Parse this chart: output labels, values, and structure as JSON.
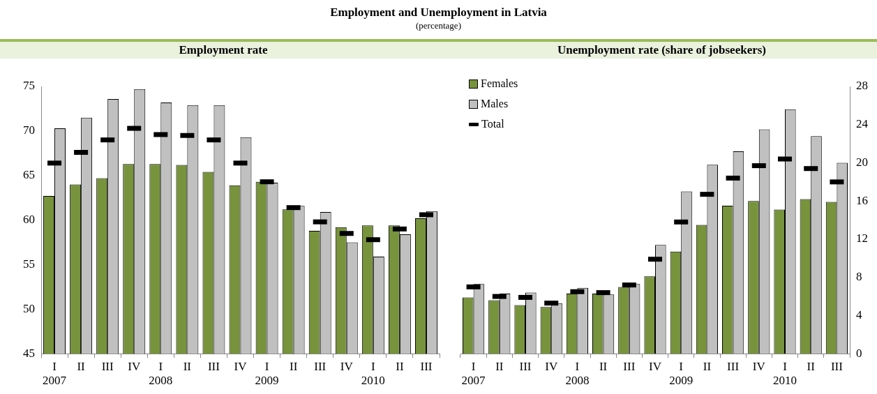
{
  "chart_data": [
    {
      "type": "bar",
      "title": "Employment rate",
      "annotations": [
        "Employment and Unemployment in Latvia",
        "(percentage)"
      ],
      "categories": [
        "I\n2007",
        "II",
        "III",
        "IV",
        "I\n2008",
        "II",
        "III",
        "IV",
        "I\n2009",
        "II",
        "III",
        "IV",
        "I\n2010",
        "II",
        "III"
      ],
      "series": [
        {
          "color": "#77933c",
          "values": [
            62.7,
            64.0,
            64.7,
            66.3,
            66.3,
            66.2,
            65.4,
            63.9,
            64.3,
            61.2,
            58.8,
            59.2,
            59.4,
            59.4,
            60.2
          ]
        },
        {
          "color": "#c0c0c0",
          "values": [
            70.3,
            71.5,
            73.6,
            74.7,
            73.2,
            72.9,
            72.9,
            69.3,
            64.2,
            61.6,
            60.9,
            57.5,
            55.9,
            58.4,
            61.0
          ]
        },
        {
          "type": "scatter",
          "color": "#000000",
          "values": [
            66.4,
            67.6,
            69.0,
            70.3,
            69.6,
            69.5,
            69.0,
            66.4,
            64.3,
            61.4,
            59.8,
            58.5,
            57.8,
            59.0,
            60.6
          ]
        }
      ],
      "ylim": [
        45,
        75
      ],
      "yticks": [
        45,
        50,
        55,
        60,
        65,
        70,
        75
      ],
      "grid": false,
      "legend": false
    },
    {
      "type": "bar",
      "title": "Unemployment rate (share of jobseekers)",
      "categories": [
        "I\n2007",
        "II",
        "III",
        "IV",
        "I\n2008",
        "II",
        "III",
        "IV",
        "I\n2009",
        "II",
        "III",
        "IV",
        "I\n2010",
        "II",
        "III"
      ],
      "series": [
        {
          "name": "Females",
          "color": "#77933c",
          "axis": "y2",
          "values": [
            5.9,
            5.6,
            5.1,
            4.9,
            6.3,
            6.3,
            7.0,
            8.1,
            10.7,
            13.5,
            15.5,
            16.0,
            15.1,
            16.2,
            15.9
          ]
        },
        {
          "name": "Males",
          "color": "#c0c0c0",
          "axis": "y2",
          "values": [
            7.3,
            6.3,
            6.4,
            5.3,
            6.9,
            6.2,
            7.3,
            11.4,
            17.0,
            19.8,
            21.2,
            23.5,
            25.6,
            22.8,
            20.0
          ]
        },
        {
          "name": "Total",
          "type": "scatter",
          "color": "#000000",
          "axis": "y2",
          "values": [
            7.0,
            6.0,
            5.9,
            5.3,
            6.5,
            6.4,
            7.2,
            9.9,
            13.8,
            16.7,
            18.4,
            19.7,
            20.4,
            19.4,
            18.0
          ]
        }
      ],
      "y2lim": [
        0,
        28
      ],
      "y2ticks": [
        0,
        4,
        8,
        12,
        16,
        20,
        24,
        28
      ],
      "grid": false,
      "legend": "top left"
    }
  ]
}
